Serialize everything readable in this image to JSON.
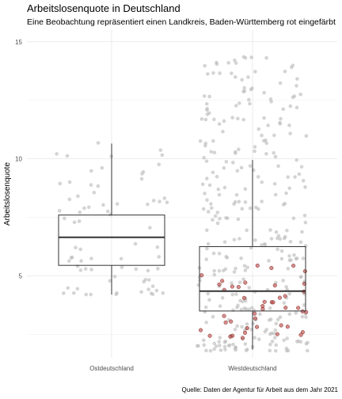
{
  "chart_data": {
    "type": "box",
    "title": "Arbeitslosenquote in Deutschland",
    "subtitle": "Eine Beobachtung repräsentiert einen Landkreis, Baden-Württemberg rot eingefärbt",
    "caption": "Quelle: Daten der Agentur für Arbeit aus dem Jahr 2021",
    "xlabel": "",
    "ylabel": "Arbeitslosenquote",
    "ylim": [
      1.5,
      15.5
    ],
    "yticks": [
      5,
      10,
      15
    ],
    "grid": true,
    "categories": [
      "Ostdeutschland",
      "Westdeutschland"
    ],
    "boxes": [
      {
        "category": "Ostdeutschland",
        "whisker_low": 4.2,
        "q1": 5.45,
        "median": 6.65,
        "q3": 7.6,
        "whisker_high": 10.65
      },
      {
        "category": "Westdeutschland",
        "whisker_low": 1.85,
        "q1": 3.5,
        "median": 4.35,
        "q3": 6.25,
        "whisker_high": 9.95
      }
    ],
    "jitter_points": {
      "Ostdeutschland": {
        "count": 75,
        "min": 4.2,
        "max": 11.0,
        "color": "#bdbdbd"
      },
      "Westdeutschland": {
        "count": 325,
        "min": 1.8,
        "max": 14.5,
        "color": "#bdbdbd"
      },
      "Baden-Württemberg": {
        "category": "Westdeutschland",
        "count": 44,
        "min": 2.3,
        "max": 5.5,
        "color": "#c0504d"
      }
    }
  }
}
